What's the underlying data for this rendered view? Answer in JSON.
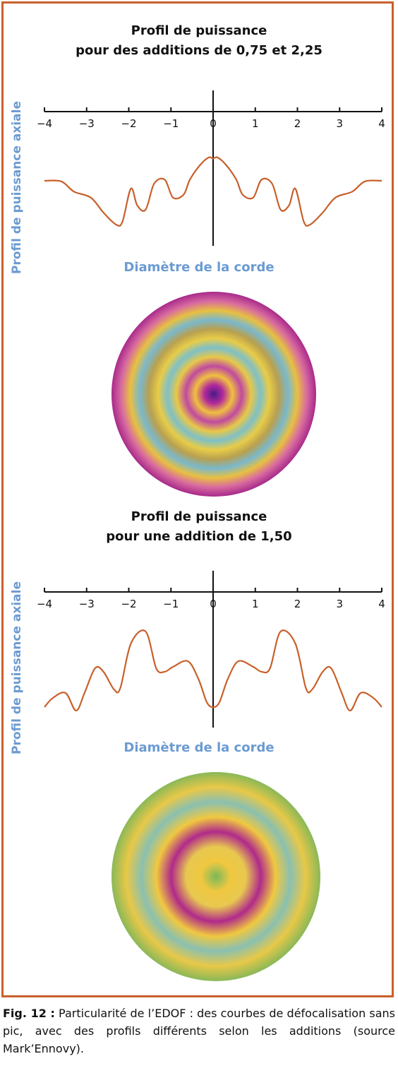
{
  "chart_data": [
    {
      "type": "line",
      "title": [
        "Profil de puissance",
        "pour des additions de 0,75 et 2,25"
      ],
      "ylabel": "Profil de puissance axiale",
      "xlabel": "Diamètre de la corde",
      "xlim": [
        -4,
        4
      ],
      "xticks": [
        "−4",
        "−3",
        "−2",
        "−1",
        "0",
        "1",
        "2",
        "3",
        "4"
      ],
      "x": [
        -4.0,
        -3.6,
        -3.3,
        -2.9,
        -2.6,
        -2.3,
        -2.15,
        -1.95,
        -1.8,
        -1.6,
        -1.4,
        -1.15,
        -0.95,
        -0.7,
        -0.55,
        -0.3,
        -0.1,
        0.0,
        0.1,
        0.3,
        0.55,
        0.7,
        0.95,
        1.15,
        1.4,
        1.6,
        1.8,
        1.95,
        2.15,
        2.3,
        2.6,
        2.9,
        3.3,
        3.6,
        4.0
      ],
      "y": [
        0.73,
        0.72,
        0.55,
        0.45,
        0.2,
        0.0,
        0.05,
        0.6,
        0.32,
        0.25,
        0.68,
        0.75,
        0.45,
        0.5,
        0.75,
        1.0,
        1.12,
        1.1,
        1.12,
        1.0,
        0.75,
        0.5,
        0.45,
        0.75,
        0.68,
        0.25,
        0.32,
        0.6,
        0.05,
        0.0,
        0.2,
        0.45,
        0.55,
        0.72,
        0.73
      ]
    },
    {
      "type": "line",
      "title": [
        "Profil de puissance",
        "pour une addition de 1,50"
      ],
      "ylabel": "Profil de puissance axiale",
      "xlabel": "Diamètre de la corde",
      "xlim": [
        -4,
        4
      ],
      "xticks": [
        "−4",
        "−3",
        "−2",
        "−1",
        "0",
        "1",
        "2",
        "3",
        "4"
      ],
      "x": [
        -4.0,
        -3.8,
        -3.5,
        -3.25,
        -3.05,
        -2.8,
        -2.6,
        -2.35,
        -2.2,
        -1.95,
        -1.6,
        -1.35,
        -1.15,
        -0.95,
        -0.6,
        -0.35,
        -0.15,
        0.0,
        0.15,
        0.35,
        0.6,
        0.95,
        1.15,
        1.35,
        1.6,
        1.95,
        2.2,
        2.35,
        2.6,
        2.8,
        3.05,
        3.25,
        3.5,
        3.8,
        4.0
      ],
      "y": [
        0.05,
        0.18,
        0.25,
        0.0,
        0.25,
        0.6,
        0.55,
        0.3,
        0.32,
        0.95,
        1.12,
        0.6,
        0.55,
        0.62,
        0.7,
        0.45,
        0.12,
        0.05,
        0.12,
        0.45,
        0.7,
        0.62,
        0.55,
        0.6,
        1.12,
        0.95,
        0.32,
        0.3,
        0.55,
        0.6,
        0.25,
        0.0,
        0.25,
        0.18,
        0.05
      ]
    }
  ],
  "colors": {
    "frame": "#c8602b",
    "curve": "#c8602b",
    "axis_label": "#6b9bd1"
  },
  "discs": [
    {
      "name": "power-map-addition-075-225",
      "rings": [
        "#4a1a8a",
        "#b22a9a",
        "#f0c040",
        "#c04aa0",
        "#e8c848",
        "#7ec0c8",
        "#e8cc48",
        "#b8a050",
        "#7ab8cc",
        "#e8c040",
        "#d86aa0",
        "#a82a8a"
      ]
    },
    {
      "name": "power-map-addition-150",
      "rings": [
        "#7ab85a",
        "#f0c840",
        "#e8c850",
        "#b02a8a",
        "#f0c840",
        "#8ac0b0",
        "#e8c848",
        "#8ab858"
      ]
    }
  ],
  "caption": {
    "fig_label": "Fig. 12 :",
    "text": " Particularité de l’EDOF : des courbes de défocalisation sans pic, avec des profils différents selon les additions (source Mark’Ennovy)."
  }
}
